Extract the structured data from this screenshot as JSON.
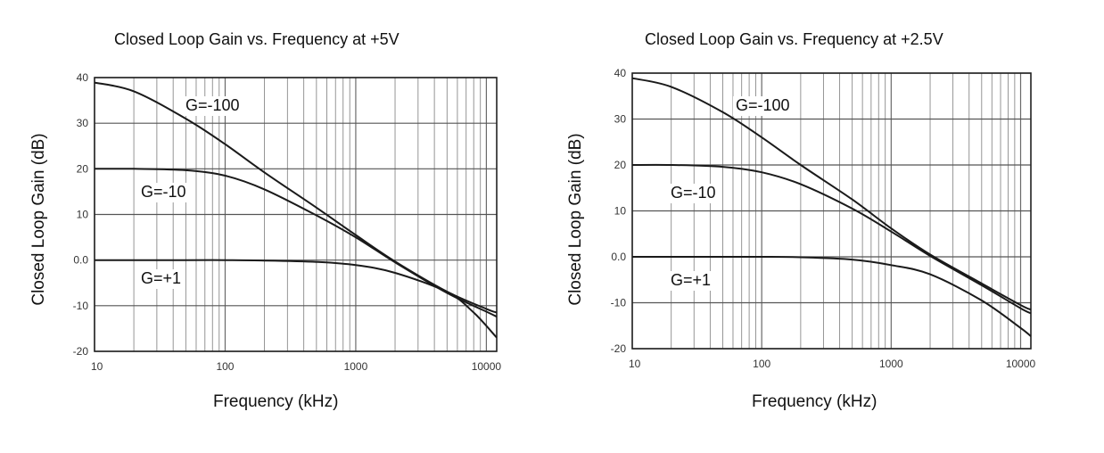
{
  "charts": [
    {
      "title": "Closed Loop Gain vs. Frequency at +5V",
      "xlabel": "Frequency (kHz)",
      "ylabel": "Closed Loop Gain (dB)"
    },
    {
      "title": "Closed Loop Gain vs. Frequency at +2.5V",
      "xlabel": "Frequency (kHz)",
      "ylabel": "Closed Loop Gain (dB)"
    }
  ],
  "chart_data": [
    {
      "type": "line",
      "title": "Closed Loop Gain vs. Frequency at +5V",
      "xlabel": "Frequency (kHz)",
      "ylabel": "Closed Loop Gain (dB)",
      "xscale": "log",
      "xlim": [
        10,
        12000
      ],
      "ylim": [
        -20,
        40
      ],
      "xticks": [
        "10",
        "100",
        "1000",
        "10000"
      ],
      "yticks": [
        "-20",
        "-10",
        "0.0",
        "10",
        "20",
        "30",
        "40"
      ],
      "grid": true,
      "series": [
        {
          "name": "G=-100",
          "x": [
            10,
            20,
            50,
            100,
            200,
            500,
            1000,
            2000,
            5000,
            10000,
            12000
          ],
          "y": [
            38.9,
            37,
            31,
            25.4,
            19.2,
            11.5,
            5.5,
            -0.3,
            -6.9,
            -10.7,
            -11.5
          ]
        },
        {
          "name": "G=-10",
          "x": [
            10,
            20,
            50,
            100,
            200,
            500,
            1000,
            2000,
            5000,
            10000,
            12000
          ],
          "y": [
            20,
            20,
            19.7,
            18.5,
            15.5,
            9.8,
            5,
            -0.5,
            -7.2,
            -11.3,
            -12.4
          ]
        },
        {
          "name": "G=+1",
          "x": [
            10,
            20,
            50,
            100,
            200,
            500,
            1000,
            2000,
            5000,
            8000,
            12000
          ],
          "y": [
            0,
            0,
            0,
            0,
            -0.1,
            -0.4,
            -1.1,
            -2.8,
            -7,
            -11.5,
            -17
          ]
        }
      ],
      "annotations": [
        "G=-100",
        "G=-10",
        "G=+1"
      ]
    },
    {
      "type": "line",
      "title": "Closed Loop Gain vs. Frequency at +2.5V",
      "xlabel": "Frequency (kHz)",
      "ylabel": "Closed Loop Gain (dB)",
      "xscale": "log",
      "xlim": [
        10,
        12000
      ],
      "ylim": [
        -20,
        40
      ],
      "xticks": [
        "10",
        "100",
        "1000",
        "10000"
      ],
      "yticks": [
        "-20",
        "-10",
        "0.0",
        "10",
        "20",
        "30",
        "40"
      ],
      "grid": true,
      "series": [
        {
          "name": "G=-100",
          "x": [
            10,
            20,
            50,
            100,
            200,
            500,
            1000,
            2000,
            5000,
            10000,
            12000
          ],
          "y": [
            38.9,
            37,
            31.5,
            26,
            20,
            12.5,
            6.2,
            0.5,
            -5.8,
            -10.5,
            -11.5
          ]
        },
        {
          "name": "G=-10",
          "x": [
            10,
            20,
            50,
            100,
            200,
            500,
            1000,
            2000,
            5000,
            10000,
            12000
          ],
          "y": [
            20,
            20,
            19.6,
            18.4,
            15.8,
            10.5,
            5.5,
            0.2,
            -6.2,
            -11.2,
            -12.3
          ]
        },
        {
          "name": "G=+1",
          "x": [
            10,
            20,
            50,
            100,
            200,
            500,
            1000,
            2000,
            5000,
            10000,
            12000
          ],
          "y": [
            0,
            0,
            0,
            0,
            -0.1,
            -0.6,
            -1.8,
            -3.8,
            -9.5,
            -15.5,
            -17.3
          ]
        }
      ],
      "annotations": [
        "G=-100",
        "G=-10",
        "G=+1"
      ]
    }
  ]
}
